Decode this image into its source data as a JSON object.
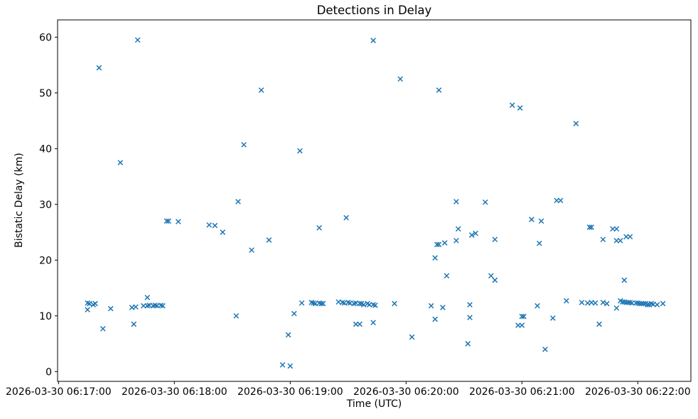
{
  "chart_data": {
    "type": "scatter",
    "title": "Detections in Delay",
    "xlabel": "Time (UTC)",
    "ylabel": "Bistatic Delay (km)",
    "marker": "x",
    "marker_color": "#1f77b4",
    "background_color": "#ffffff",
    "axis_color": "#000000",
    "grid": false,
    "legend": null,
    "x_base_time": "2026-03-30 06:17:00",
    "x_tick_seconds": [
      0,
      60,
      120,
      180,
      240,
      300
    ],
    "x_tick_labels": [
      "2026-03-30 06:17:00",
      "2026-03-30 06:18:00",
      "2026-03-30 06:19:00",
      "2026-03-30 06:20:00",
      "2026-03-30 06:21:00",
      "2026-03-30 06:22:00"
    ],
    "x_range_seconds": [
      -0.5,
      327.5
    ],
    "y_ticks": [
      0,
      10,
      20,
      30,
      40,
      50,
      60
    ],
    "y_range": [
      -1.75,
      63.1
    ],
    "points_format": "[seconds_after_x_base_time, bistatic_delay_km]",
    "points": [
      [
        41,
        59.5
      ],
      [
        21,
        54.5
      ],
      [
        32,
        37.5
      ],
      [
        96,
        40.7
      ],
      [
        105,
        50.5
      ],
      [
        93,
        30.5
      ],
      [
        163,
        59.4
      ],
      [
        177,
        52.5
      ],
      [
        197,
        50.5
      ],
      [
        125,
        39.6
      ],
      [
        235,
        47.8
      ],
      [
        239,
        47.3
      ],
      [
        268,
        44.5
      ],
      [
        221,
        30.4
      ],
      [
        258,
        30.7
      ],
      [
        260,
        30.7
      ],
      [
        15,
        12.3
      ],
      [
        16,
        12.2
      ],
      [
        18,
        12.0
      ],
      [
        19,
        12.2
      ],
      [
        15,
        11.1
      ],
      [
        23,
        7.7
      ],
      [
        27,
        11.3
      ],
      [
        38,
        11.5
      ],
      [
        40,
        11.6
      ],
      [
        39,
        8.5
      ],
      [
        46,
        13.3
      ],
      [
        44,
        11.8
      ],
      [
        46,
        11.8
      ],
      [
        47,
        11.9
      ],
      [
        49,
        11.8
      ],
      [
        50,
        11.9
      ],
      [
        51,
        11.8
      ],
      [
        53,
        11.9
      ],
      [
        54,
        11.8
      ],
      [
        56,
        27.0
      ],
      [
        57,
        27.0
      ],
      [
        62,
        26.9
      ],
      [
        78,
        26.3
      ],
      [
        81,
        26.2
      ],
      [
        85,
        25.0
      ],
      [
        92,
        10.0
      ],
      [
        100,
        21.8
      ],
      [
        109,
        23.6
      ],
      [
        116,
        1.2
      ],
      [
        120,
        1.0
      ],
      [
        119,
        6.6
      ],
      [
        122,
        10.4
      ],
      [
        126,
        12.3
      ],
      [
        131,
        12.4
      ],
      [
        132,
        12.3
      ],
      [
        133,
        12.2
      ],
      [
        135,
        12.3
      ],
      [
        136,
        12.2
      ],
      [
        137,
        12.2
      ],
      [
        135,
        25.8
      ],
      [
        145,
        12.5
      ],
      [
        147,
        12.4
      ],
      [
        148,
        12.3
      ],
      [
        150,
        12.4
      ],
      [
        149,
        27.6
      ],
      [
        151,
        12.3
      ],
      [
        153,
        12.2
      ],
      [
        154,
        12.3
      ],
      [
        156,
        12.2
      ],
      [
        157,
        12.2
      ],
      [
        158,
        12.0
      ],
      [
        160,
        12.2
      ],
      [
        161,
        12.0
      ],
      [
        163,
        12.0
      ],
      [
        164,
        11.9
      ],
      [
        154,
        8.5
      ],
      [
        156,
        8.5
      ],
      [
        163,
        8.8
      ],
      [
        174,
        12.2
      ],
      [
        183,
        6.2
      ],
      [
        193,
        11.8
      ],
      [
        195,
        20.4
      ],
      [
        195,
        9.4
      ],
      [
        196,
        22.8
      ],
      [
        197,
        22.8
      ],
      [
        200,
        23.1
      ],
      [
        199,
        11.5
      ],
      [
        201,
        17.2
      ],
      [
        206,
        30.5
      ],
      [
        206,
        23.5
      ],
      [
        207,
        25.6
      ],
      [
        213,
        12.0
      ],
      [
        213,
        9.7
      ],
      [
        212,
        5.0
      ],
      [
        214,
        24.5
      ],
      [
        216,
        24.8
      ],
      [
        224,
        17.2
      ],
      [
        226,
        16.4
      ],
      [
        226,
        23.7
      ],
      [
        240,
        9.9
      ],
      [
        241,
        9.9
      ],
      [
        238,
        8.3
      ],
      [
        240,
        8.3
      ],
      [
        245,
        27.3
      ],
      [
        248,
        11.8
      ],
      [
        250,
        27.0
      ],
      [
        249,
        23.0
      ],
      [
        252,
        4.0
      ],
      [
        256,
        9.6
      ],
      [
        263,
        12.7
      ],
      [
        271,
        12.4
      ],
      [
        274,
        12.3
      ],
      [
        276,
        12.4
      ],
      [
        278,
        12.3
      ],
      [
        275,
        25.9
      ],
      [
        276,
        25.9
      ],
      [
        280,
        8.5
      ],
      [
        282,
        12.4
      ],
      [
        284,
        12.2
      ],
      [
        282,
        23.7
      ],
      [
        287,
        25.6
      ],
      [
        289,
        25.6
      ],
      [
        289,
        11.4
      ],
      [
        289,
        23.5
      ],
      [
        291,
        23.5
      ],
      [
        293,
        16.4
      ],
      [
        294,
        24.2
      ],
      [
        296,
        24.2
      ],
      [
        291,
        12.7
      ],
      [
        292,
        12.5
      ],
      [
        293,
        12.5
      ],
      [
        294,
        12.4
      ],
      [
        295,
        12.4
      ],
      [
        296,
        12.4
      ],
      [
        297,
        12.3
      ],
      [
        299,
        12.3
      ],
      [
        300,
        12.3
      ],
      [
        301,
        12.2
      ],
      [
        302,
        12.2
      ],
      [
        303,
        12.2
      ],
      [
        304,
        12.2
      ],
      [
        305,
        12.0
      ],
      [
        306,
        12.0
      ],
      [
        307,
        12.2
      ],
      [
        308,
        12.1
      ],
      [
        310,
        12.0
      ],
      [
        313,
        12.2
      ]
    ]
  }
}
